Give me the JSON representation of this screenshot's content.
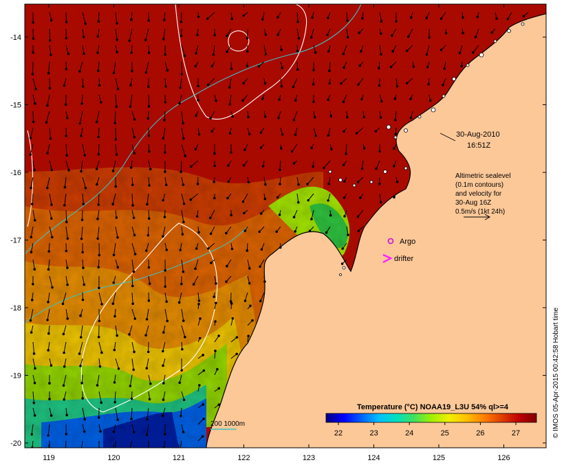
{
  "map": {
    "x_ticks": [
      "119",
      "120",
      "121",
      "122",
      "123",
      "124",
      "125",
      "126"
    ],
    "y_ticks": [
      "-14",
      "-15",
      "-16",
      "-17",
      "-18",
      "-19",
      "-20"
    ],
    "timestamp": {
      "date": "30-Aug-2010",
      "time": "16:51Z"
    },
    "velocity_note": {
      "lines": [
        "Altimetric sealevel",
        "(0.1m contours)",
        "and velocity for",
        "30-Aug 16Z",
        "0.5m/s (1kt 24h)"
      ]
    },
    "legend": {
      "argo_label": "Argo",
      "drifter_label": "drifter",
      "argo_color": "#d020d0",
      "drifter_color": "#ff20ff"
    },
    "isobath_label": "200  1000m",
    "isobath_color": "#40c0c0",
    "land_color": "#fcc898",
    "credit": "© IMOS 05-Apr-2015 00:42:58 Hobart time"
  },
  "colorbar": {
    "title": "Temperature (°C) NOAA19_L3U 54% ql>=4",
    "ticks": [
      "22",
      "23",
      "24",
      "25",
      "26",
      "27"
    ],
    "colors": [
      "#000080",
      "#0000ff",
      "#0060ff",
      "#00c0ff",
      "#00e0c0",
      "#40e060",
      "#a0f000",
      "#f0f000",
      "#ffc000",
      "#ff8000",
      "#e04000",
      "#c00000",
      "#800000"
    ]
  }
}
